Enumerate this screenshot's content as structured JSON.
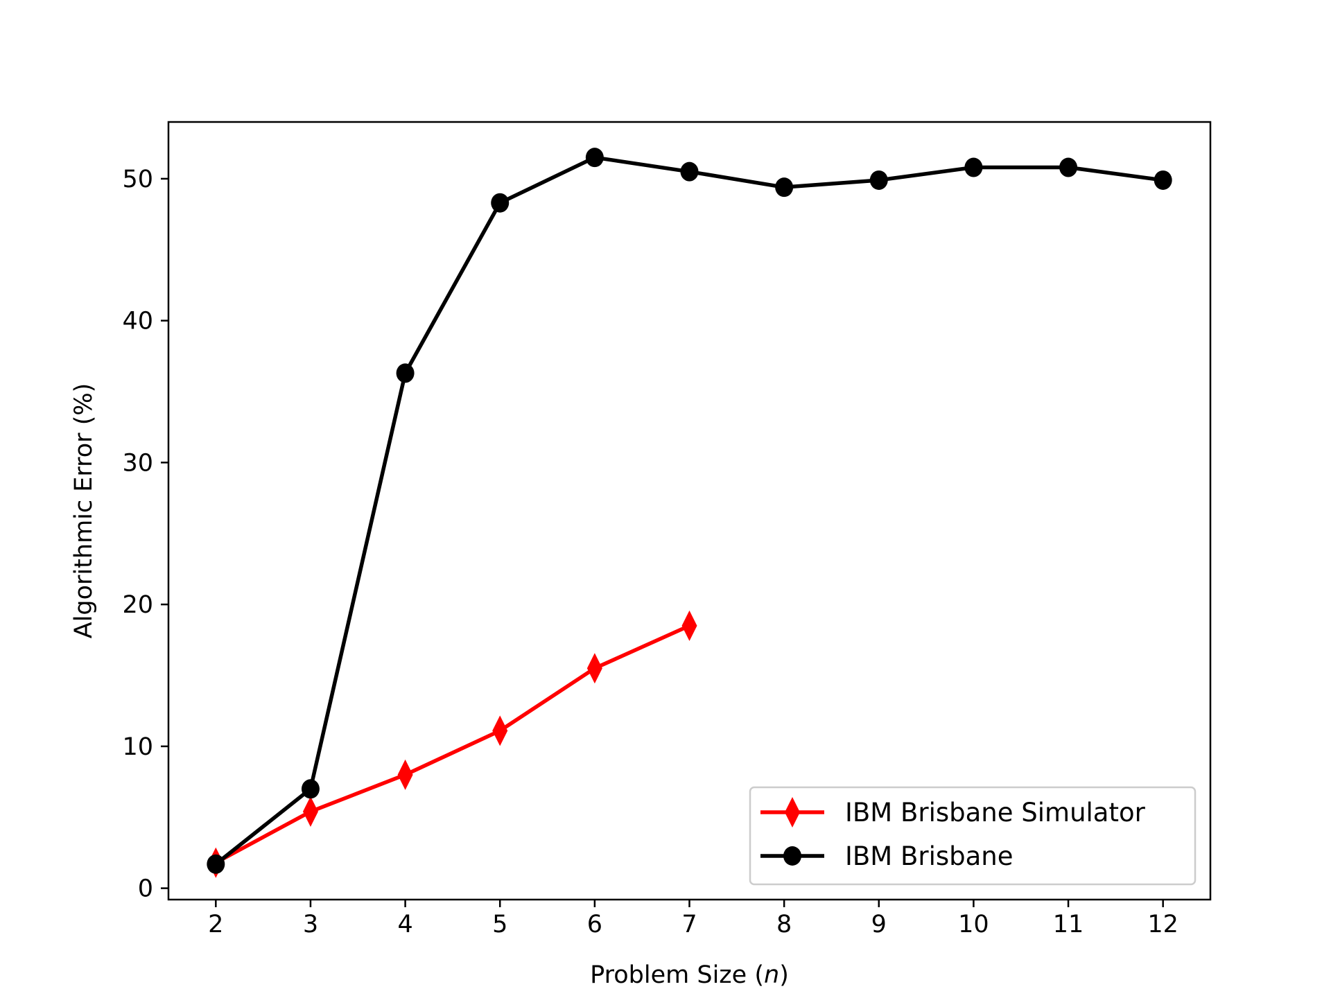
{
  "chart_data": {
    "type": "line",
    "title": "",
    "xlabel": "Problem Size (n)",
    "xlabel_prefix": "Problem Size (",
    "xlabel_italic": "n",
    "xlabel_suffix": ")",
    "ylabel": "Algorithmic Error (%)",
    "x": [
      2,
      3,
      4,
      5,
      6,
      7,
      8,
      9,
      10,
      11,
      12
    ],
    "xticks": [
      "2",
      "3",
      "4",
      "5",
      "6",
      "7",
      "8",
      "9",
      "10",
      "11",
      "12"
    ],
    "yticks": [
      "0",
      "10",
      "20",
      "30",
      "40",
      "50"
    ],
    "xlim": [
      1.5,
      12.5
    ],
    "ylim": [
      -0.8,
      54
    ],
    "grid": false,
    "legend_position": "lower right",
    "series": [
      {
        "name": "IBM Brisbane Simulator",
        "color": "#ff0000",
        "marker": "thin_diamond",
        "x": [
          2,
          3,
          4,
          5,
          6,
          7
        ],
        "values": [
          1.8,
          5.4,
          8.0,
          11.1,
          15.5,
          18.5
        ]
      },
      {
        "name": "IBM Brisbane",
        "color": "#000000",
        "marker": "circle",
        "x": [
          2,
          3,
          4,
          5,
          6,
          7,
          8,
          9,
          10,
          11,
          12
        ],
        "values": [
          1.7,
          7.0,
          36.3,
          48.3,
          51.5,
          50.5,
          49.4,
          49.9,
          50.8,
          50.8,
          49.9
        ]
      }
    ]
  }
}
